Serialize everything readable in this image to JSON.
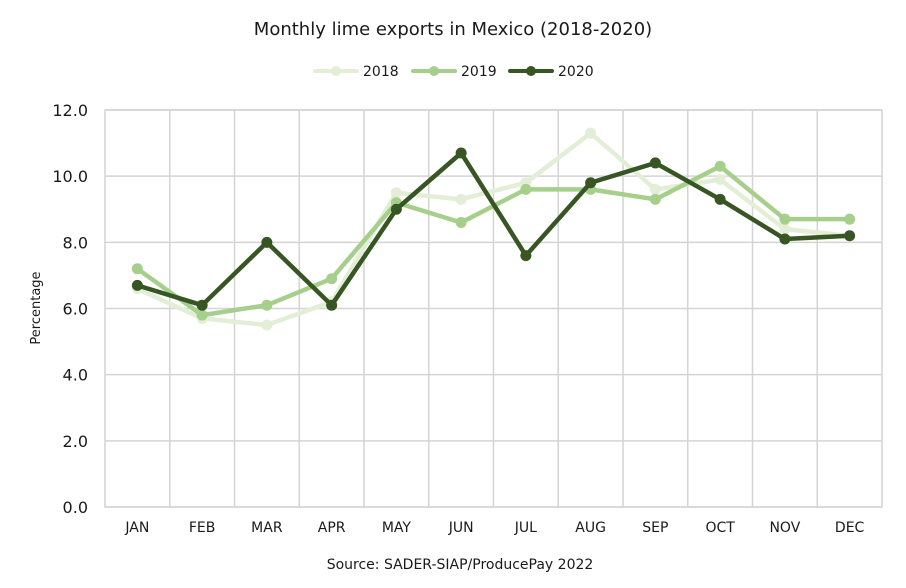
{
  "chart_data": {
    "type": "line",
    "title": "Monthly lime exports in Mexico (2018-2020)",
    "xlabel": "",
    "ylabel": "Percentage",
    "source": "Source: SADER-SIAP/ProducePay 2022",
    "categories": [
      "JAN",
      "FEB",
      "MAR",
      "APR",
      "MAY",
      "JUN",
      "JUL",
      "AUG",
      "SEP",
      "OCT",
      "NOV",
      "DEC"
    ],
    "ylim": [
      0,
      12
    ],
    "yticks": [
      "0.0",
      "2.0",
      "4.0",
      "6.0",
      "8.0",
      "10.0",
      "12.0"
    ],
    "grid": true,
    "legend_position": "top-center",
    "series": [
      {
        "name": "2018",
        "color": "#e2efd6",
        "values": [
          6.6,
          5.7,
          5.5,
          6.2,
          9.5,
          9.3,
          9.8,
          11.3,
          9.6,
          9.9,
          8.4,
          8.2
        ]
      },
      {
        "name": "2019",
        "color": "#a6cf8c",
        "values": [
          7.2,
          5.8,
          6.1,
          6.9,
          9.2,
          8.6,
          9.6,
          9.6,
          9.3,
          10.3,
          8.7,
          8.7
        ]
      },
      {
        "name": "2020",
        "color": "#375623",
        "values": [
          6.7,
          6.1,
          8.0,
          6.1,
          9.0,
          10.7,
          7.6,
          9.8,
          10.4,
          9.3,
          8.1,
          8.2
        ]
      }
    ]
  }
}
